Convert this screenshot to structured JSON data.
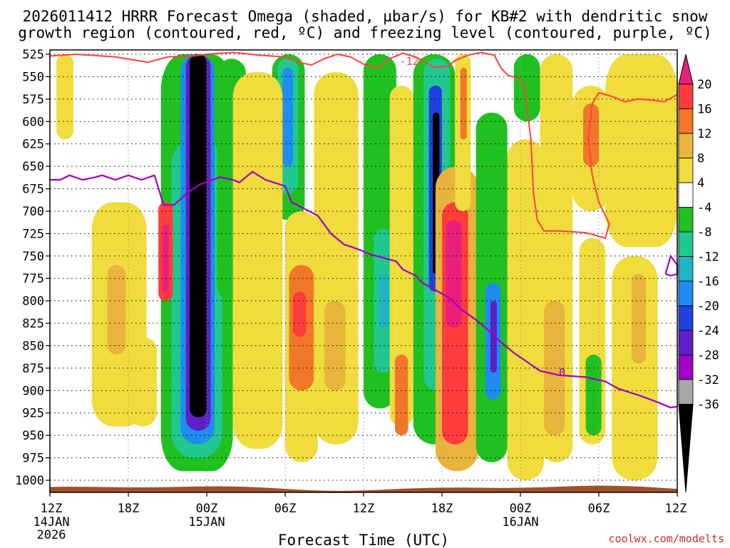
{
  "chart_data": {
    "type": "heatmap",
    "title_line1": "2026011412 HRRR Forecast Omega (shaded, µbar/s) for KB#2 with dendritic snow",
    "title_line2": "growth region (contoured, red, ºC) and freezing level (contoured, purple, ºC)",
    "xlabel": "Forecast Time (UTC)",
    "credit": "coolwx.com/modelts",
    "y_levels": [
      "525",
      "550",
      "575",
      "600",
      "625",
      "650",
      "675",
      "700",
      "725",
      "750",
      "775",
      "800",
      "825",
      "850",
      "875",
      "900",
      "925",
      "950",
      "975",
      "1000"
    ],
    "ylim": [
      525,
      1000
    ],
    "xlim_hours": [
      0,
      48
    ],
    "x_ticks": [
      {
        "hour": 0,
        "label": "12Z",
        "date": "14JAN",
        "year": "2026"
      },
      {
        "hour": 6,
        "label": "18Z",
        "date": "",
        "year": ""
      },
      {
        "hour": 12,
        "label": "00Z",
        "date": "15JAN",
        "year": ""
      },
      {
        "hour": 18,
        "label": "06Z",
        "date": "",
        "year": ""
      },
      {
        "hour": 24,
        "label": "12Z",
        "date": "",
        "year": ""
      },
      {
        "hour": 30,
        "label": "18Z",
        "date": "",
        "year": ""
      },
      {
        "hour": 36,
        "label": "00Z",
        "date": "16JAN",
        "year": ""
      },
      {
        "hour": 42,
        "label": "06Z",
        "date": "",
        "year": ""
      },
      {
        "hour": 48,
        "label": "12Z",
        "date": "",
        "year": ""
      }
    ],
    "colorbar": {
      "labels": [
        "20",
        "16",
        "12",
        "8",
        "4",
        "-4",
        "-8",
        "-12",
        "-16",
        "-20",
        "-24",
        "-28",
        "-32",
        "-36"
      ],
      "colors": [
        "#e8207a",
        "#ff3c3c",
        "#f07828",
        "#e8b43c",
        "#f0dc3c",
        "#ffffff",
        "#20c020",
        "#20c890",
        "#20b4c8",
        "#1e8cf0",
        "#2040e0",
        "#6020c8",
        "#a000c8",
        "#a8a8a8",
        "#000000"
      ]
    },
    "snow_growth_contour": {
      "label": "-12",
      "points": [
        [
          0,
          527
        ],
        [
          2,
          525
        ],
        [
          5,
          528
        ],
        [
          7.5,
          534
        ],
        [
          9,
          528
        ],
        [
          11,
          527
        ],
        [
          12,
          525
        ],
        [
          14,
          523
        ],
        [
          16,
          526
        ],
        [
          18,
          528
        ],
        [
          19,
          534
        ],
        [
          20,
          537
        ],
        [
          21,
          530
        ],
        [
          22,
          525
        ],
        [
          23,
          528
        ],
        [
          24,
          536
        ],
        [
          25,
          540
        ],
        [
          26,
          530
        ],
        [
          27,
          524
        ],
        [
          28,
          528
        ],
        [
          29.5,
          540
        ],
        [
          30.5,
          538
        ],
        [
          31,
          532
        ],
        [
          32,
          526
        ],
        [
          33,
          523
        ],
        [
          34,
          526
        ],
        [
          34.5,
          540
        ],
        [
          35,
          548
        ],
        [
          36,
          553
        ],
        [
          36.3,
          560
        ],
        [
          36.5,
          585
        ],
        [
          36.8,
          620
        ],
        [
          37,
          680
        ],
        [
          37.3,
          710
        ],
        [
          37.8,
          722
        ],
        [
          39,
          722
        ],
        [
          41,
          724
        ],
        [
          42.5,
          730
        ],
        [
          42.8,
          714
        ],
        [
          42,
          690
        ],
        [
          41.5,
          660
        ],
        [
          41.2,
          620
        ],
        [
          41.5,
          580
        ],
        [
          42,
          568
        ],
        [
          43,
          572
        ],
        [
          44,
          578
        ],
        [
          45,
          575
        ],
        [
          46,
          576
        ],
        [
          47,
          578
        ],
        [
          48,
          570
        ]
      ]
    },
    "freezing_level_contour": {
      "label": "0",
      "points": [
        [
          0,
          665
        ],
        [
          0.8,
          665
        ],
        [
          1.5,
          660
        ],
        [
          2.5,
          665
        ],
        [
          3.5,
          662
        ],
        [
          4,
          660
        ],
        [
          5,
          665
        ],
        [
          6,
          660
        ],
        [
          7,
          665
        ],
        [
          8,
          660
        ],
        [
          8.7,
          693
        ],
        [
          9.5,
          693
        ],
        [
          10.5,
          680
        ],
        [
          11.5,
          670
        ],
        [
          13,
          662
        ],
        [
          14,
          665
        ],
        [
          14.5,
          668
        ],
        [
          15.5,
          656
        ],
        [
          16.5,
          665
        ],
        [
          18,
          672
        ],
        [
          18.5,
          690
        ],
        [
          20.5,
          705
        ],
        [
          21.5,
          725
        ],
        [
          22.5,
          737
        ],
        [
          23.5,
          742
        ],
        [
          24.5,
          748
        ],
        [
          25.5,
          752
        ],
        [
          26.5,
          756
        ],
        [
          27,
          765
        ],
        [
          28,
          772
        ],
        [
          28.5,
          780
        ],
        [
          29.5,
          788
        ],
        [
          30.5,
          796
        ],
        [
          31.5,
          810
        ],
        [
          32.5,
          820
        ],
        [
          33.5,
          832
        ],
        [
          34.5,
          846
        ],
        [
          35.5,
          858
        ],
        [
          36.5,
          868
        ],
        [
          37.5,
          878
        ],
        [
          39,
          883
        ],
        [
          41,
          885
        ],
        [
          42.5,
          890
        ],
        [
          43.5,
          898
        ],
        [
          45,
          905
        ],
        [
          46.5,
          913
        ],
        [
          47.5,
          919
        ],
        [
          48,
          918
        ]
      ]
    },
    "freezing_level_loop": {
      "points": [
        [
          47.1,
          770
        ],
        [
          47.5,
          750
        ],
        [
          48,
          760
        ],
        [
          48,
          770
        ],
        [
          47.5,
          772
        ],
        [
          47.1,
          770
        ]
      ]
    },
    "omega_cells": [
      {
        "t0": 8.5,
        "t1": 14.0,
        "p0": 525,
        "p1": 990,
        "v": -8
      },
      {
        "t0": 9.3,
        "t1": 13.2,
        "p0": 620,
        "p1": 975,
        "v": -12
      },
      {
        "t0": 10.0,
        "t1": 12.6,
        "p0": 525,
        "p1": 960,
        "v": -20
      },
      {
        "t0": 10.4,
        "t1": 12.3,
        "p0": 525,
        "p1": 945,
        "v": -28
      },
      {
        "t0": 10.7,
        "t1": 12.0,
        "p0": 525,
        "p1": 930,
        "v": -36
      },
      {
        "t0": 8.3,
        "t1": 9.4,
        "p0": 690,
        "p1": 800,
        "v": 16
      },
      {
        "t0": 8.6,
        "t1": 9.1,
        "p0": 715,
        "p1": 790,
        "v": 20
      },
      {
        "t0": 12.8,
        "t1": 15.0,
        "p0": 530,
        "p1": 800,
        "v": -8
      },
      {
        "t0": 17.0,
        "t1": 19.5,
        "p0": 525,
        "p1": 710,
        "v": -8
      },
      {
        "t0": 17.4,
        "t1": 19.0,
        "p0": 530,
        "p1": 680,
        "v": -12
      },
      {
        "t0": 17.8,
        "t1": 18.6,
        "p0": 540,
        "p1": 650,
        "v": -20
      },
      {
        "t0": 24.0,
        "t1": 26.5,
        "p0": 525,
        "p1": 920,
        "v": -8
      },
      {
        "t0": 24.8,
        "t1": 26.2,
        "p0": 720,
        "p1": 880,
        "v": -12
      },
      {
        "t0": 25.2,
        "t1": 25.9,
        "p0": 770,
        "p1": 830,
        "v": -16
      },
      {
        "t0": 27.8,
        "t1": 31.0,
        "p0": 525,
        "p1": 960,
        "v": -8
      },
      {
        "t0": 28.6,
        "t1": 30.6,
        "p0": 530,
        "p1": 900,
        "v": -12
      },
      {
        "t0": 29.0,
        "t1": 30.0,
        "p0": 560,
        "p1": 790,
        "v": -24
      },
      {
        "t0": 29.3,
        "t1": 29.8,
        "p0": 590,
        "p1": 770,
        "v": -36
      },
      {
        "t0": 29.5,
        "t1": 32.8,
        "p0": 650,
        "p1": 990,
        "v": 8
      },
      {
        "t0": 30.0,
        "t1": 32.0,
        "p0": 690,
        "p1": 960,
        "v": 16
      },
      {
        "t0": 30.3,
        "t1": 31.5,
        "p0": 710,
        "p1": 830,
        "v": 20
      },
      {
        "t0": 32.6,
        "t1": 35.0,
        "p0": 590,
        "p1": 980,
        "v": -8
      },
      {
        "t0": 33.3,
        "t1": 34.5,
        "p0": 780,
        "p1": 910,
        "v": -20
      },
      {
        "t0": 33.7,
        "t1": 34.2,
        "p0": 800,
        "p1": 880,
        "v": -28
      },
      {
        "t0": 35.5,
        "t1": 37.5,
        "p0": 525,
        "p1": 600,
        "v": -8
      },
      {
        "t0": 18.0,
        "t1": 20.5,
        "p0": 700,
        "p1": 980,
        "v": 4
      },
      {
        "t0": 18.3,
        "t1": 20.2,
        "p0": 760,
        "p1": 900,
        "v": 12
      },
      {
        "t0": 18.6,
        "t1": 19.6,
        "p0": 790,
        "p1": 840,
        "v": 16
      },
      {
        "t0": 3.2,
        "t1": 7.4,
        "p0": 690,
        "p1": 940,
        "v": 4
      },
      {
        "t0": 4.4,
        "t1": 5.8,
        "p0": 760,
        "p1": 860,
        "v": 8
      },
      {
        "t0": 0.5,
        "t1": 1.8,
        "p0": 525,
        "p1": 620,
        "v": 4
      },
      {
        "t0": 14.0,
        "t1": 17.8,
        "p0": 545,
        "p1": 965,
        "v": 4
      },
      {
        "t0": 20.2,
        "t1": 23.6,
        "p0": 545,
        "p1": 960,
        "v": 4
      },
      {
        "t0": 21.0,
        "t1": 22.6,
        "p0": 800,
        "p1": 900,
        "v": 8
      },
      {
        "t0": 26.0,
        "t1": 27.8,
        "p0": 560,
        "p1": 940,
        "v": 4
      },
      {
        "t0": 26.4,
        "t1": 27.4,
        "p0": 860,
        "p1": 950,
        "v": 12
      },
      {
        "t0": 31.0,
        "t1": 32.2,
        "p0": 525,
        "p1": 700,
        "v": 4
      },
      {
        "t0": 31.4,
        "t1": 31.9,
        "p0": 540,
        "p1": 620,
        "v": 12
      },
      {
        "t0": 35.0,
        "t1": 37.8,
        "p0": 620,
        "p1": 1000,
        "v": 4
      },
      {
        "t0": 37.5,
        "t1": 40.0,
        "p0": 525,
        "p1": 980,
        "v": 4
      },
      {
        "t0": 37.8,
        "t1": 39.4,
        "p0": 800,
        "p1": 950,
        "v": 8
      },
      {
        "t0": 40.0,
        "t1": 42.8,
        "p0": 560,
        "p1": 700,
        "v": 4
      },
      {
        "t0": 40.8,
        "t1": 42.0,
        "p0": 580,
        "p1": 650,
        "v": 12
      },
      {
        "t0": 40.5,
        "t1": 42.5,
        "p0": 730,
        "p1": 960,
        "v": 4
      },
      {
        "t0": 41.0,
        "t1": 42.2,
        "p0": 860,
        "p1": 950,
        "v": -8
      },
      {
        "t0": 42.5,
        "t1": 48.0,
        "p0": 525,
        "p1": 740,
        "v": 4
      },
      {
        "t0": 43.0,
        "t1": 46.5,
        "p0": 750,
        "p1": 1000,
        "v": 4
      },
      {
        "t0": 44.5,
        "t1": 45.6,
        "p0": 770,
        "p1": 870,
        "v": 8
      },
      {
        "t0": 6.0,
        "t1": 8.2,
        "p0": 840,
        "p1": 940,
        "v": 4
      }
    ]
  }
}
